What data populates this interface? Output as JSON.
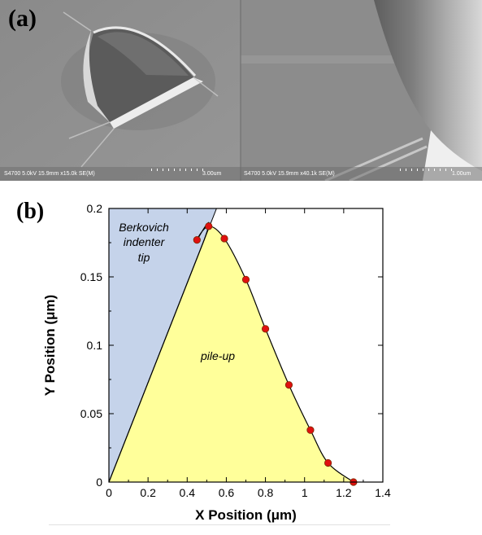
{
  "panel_a": {
    "label": "(a)",
    "left_image": {
      "info": "S4700 5.0kV 15.9mm x15.0k SE(M)",
      "scale": "3.00um"
    },
    "right_image": {
      "info": "S4700 5.0kV 15.9mm x40.1k SE(M)",
      "scale": "1.00um"
    }
  },
  "panel_b": {
    "label": "(b)",
    "region_labels": {
      "indenter": [
        "Berkovich",
        "indenter",
        "tip"
      ],
      "pileup": "pile-up"
    },
    "colors": {
      "indenter_fill": "#c5d3ea",
      "pileup_fill": "#ffff9a",
      "marker_fill": "#e01010",
      "marker_stroke": "#7a2a00"
    }
  },
  "chart_data": {
    "type": "scatter",
    "xlabel": "X Position (μm)",
    "ylabel": "Y Position (μm)",
    "xlim": [
      0,
      1.4
    ],
    "ylim": [
      0,
      0.2
    ],
    "x_ticks": [
      "0",
      "0.2",
      "0.4",
      "0.6",
      "0.8",
      "1",
      "1.2",
      "1.4"
    ],
    "y_ticks": [
      "0",
      "0.05",
      "0.1",
      "0.15",
      "0.2"
    ],
    "grid": false,
    "series": [
      {
        "values": [
          [
            0.45,
            0.177
          ],
          [
            0.51,
            0.187
          ],
          [
            0.59,
            0.178
          ],
          [
            0.7,
            0.148
          ],
          [
            0.8,
            0.112
          ],
          [
            0.92,
            0.071
          ],
          [
            1.03,
            0.038
          ],
          [
            1.12,
            0.014
          ],
          [
            1.25,
            0.0
          ]
        ]
      }
    ],
    "indenter_edge": [
      [
        0,
        0
      ],
      [
        0.55,
        0.2
      ]
    ]
  }
}
